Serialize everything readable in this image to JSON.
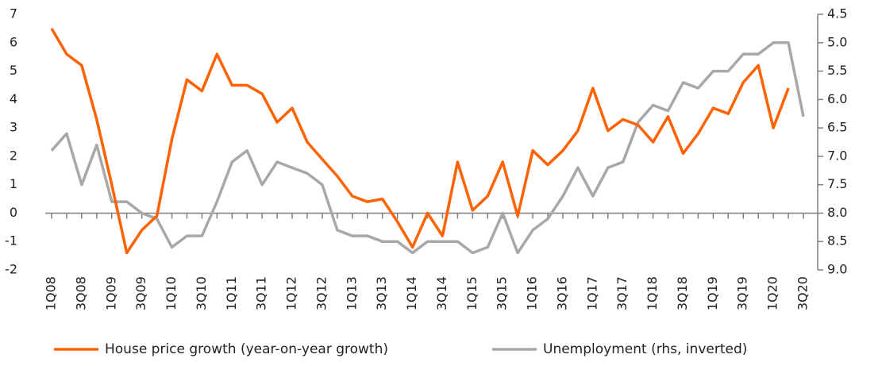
{
  "chart_data": {
    "type": "line",
    "categories": [
      "1Q08",
      null,
      "3Q08",
      null,
      "1Q09",
      null,
      "3Q09",
      null,
      "1Q10",
      null,
      "3Q10",
      null,
      "1Q11",
      null,
      "3Q11",
      null,
      "1Q12",
      null,
      "3Q12",
      null,
      "1Q13",
      null,
      "3Q13",
      null,
      "1Q14",
      null,
      "3Q14",
      null,
      "1Q15",
      null,
      "3Q15",
      null,
      "1Q16",
      null,
      "3Q16",
      null,
      "1Q17",
      null,
      "3Q17",
      null,
      "1Q18",
      null,
      "3Q18",
      null,
      "1Q19",
      null,
      "3Q19",
      null,
      "1Q20",
      null,
      "3Q20"
    ],
    "series": [
      {
        "name": "House price growth (year-on-year growth)",
        "color": "#ff6200",
        "values": [
          6.5,
          5.6,
          5.2,
          3.3,
          1.0,
          -1.4,
          -0.6,
          -0.1,
          2.6,
          4.7,
          4.3,
          5.6,
          4.5,
          4.5,
          4.2,
          3.2,
          3.7,
          2.5,
          1.9,
          1.3,
          0.6,
          0.4,
          0.5,
          -0.3,
          -1.2,
          0.0,
          -0.8,
          1.8,
          0.1,
          0.6,
          1.8,
          -0.1,
          2.2,
          1.7,
          2.2,
          2.9,
          4.4,
          2.9,
          3.3,
          3.1,
          2.5,
          3.4,
          2.1,
          2.8,
          3.7,
          3.5,
          4.6,
          5.2,
          3.0,
          4.4,
          null
        ]
      },
      {
        "name": "Unemployment (rhs, inverted)",
        "color": "#a8a8a8",
        "axis": "y2",
        "values": [
          6.9,
          6.6,
          7.5,
          6.8,
          7.8,
          7.8,
          8.0,
          8.1,
          8.6,
          8.4,
          8.4,
          7.8,
          7.1,
          6.9,
          7.5,
          7.1,
          7.2,
          7.3,
          7.5,
          8.3,
          8.4,
          8.4,
          8.5,
          8.5,
          8.7,
          8.5,
          8.5,
          8.5,
          8.7,
          8.6,
          8.0,
          8.7,
          8.3,
          8.1,
          7.7,
          7.2,
          7.7,
          7.2,
          7.1,
          6.4,
          6.1,
          6.2,
          5.7,
          5.8,
          5.5,
          5.5,
          5.2,
          5.2,
          5.0,
          5.0,
          6.3
        ]
      }
    ],
    "ylim": [
      -2,
      7
    ],
    "yticks": [
      -2,
      -1,
      0,
      1,
      2,
      3,
      4,
      5,
      6,
      7
    ],
    "y2lim": [
      4.5,
      9.0
    ],
    "y2_inverted": true,
    "y2ticks": [
      4.5,
      {
        "value": 5,
        "label": "5.0"
      },
      5.5,
      {
        "value": 6,
        "label": "6.0"
      },
      6.5,
      {
        "value": 7,
        "label": "7.0"
      },
      7.5,
      {
        "value": 8,
        "label": "8.0"
      },
      8.5,
      {
        "value": 9,
        "label": "9.0"
      }
    ],
    "legend": "bottom"
  }
}
